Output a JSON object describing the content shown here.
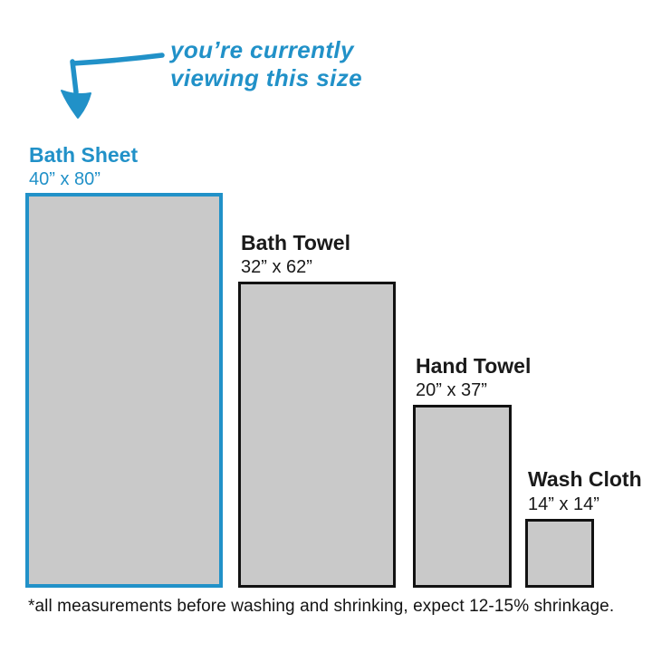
{
  "annotation": {
    "line1": "you’re currently",
    "line2": "viewing this size"
  },
  "items": [
    {
      "name": "Bath Sheet",
      "size": "40” x 80”",
      "width_in": 40,
      "height_in": 80,
      "highlighted": true
    },
    {
      "name": "Bath Towel",
      "size": "32” x 62”",
      "width_in": 32,
      "height_in": 62,
      "highlighted": false
    },
    {
      "name": "Hand Towel",
      "size": "20” x 37”",
      "width_in": 20,
      "height_in": 37,
      "highlighted": false
    },
    {
      "name": "Wash Cloth",
      "size": "14” x 14”",
      "width_in": 14,
      "height_in": 14,
      "highlighted": false
    }
  ],
  "footnote": "*all measurements before washing and shrinking, expect 12-15% shrinkage.",
  "colors": {
    "accent": "#2191c8",
    "towel_fill": "#c9c9c9",
    "outline": "#121212",
    "label_text": "#1a1a1a"
  }
}
